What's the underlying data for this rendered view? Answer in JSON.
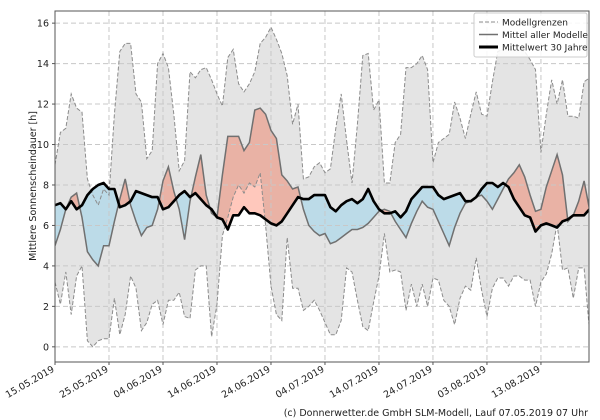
{
  "chart_data": {
    "type": "area",
    "title": "",
    "ylabel": "Mittlere Sonnenscheindauer [h]",
    "xlabel": "",
    "x_unit": "days since 15.05.2019",
    "xlim": [
      0,
      98.9
    ],
    "ylim": [
      -0.75,
      16.6
    ],
    "grid": true,
    "legend_position": "top-right",
    "x_ticks": [
      {
        "day": 0,
        "label": "15.05.2019"
      },
      {
        "day": 10,
        "label": "25.05.2019"
      },
      {
        "day": 20,
        "label": "04.06.2019"
      },
      {
        "day": 30,
        "label": "14.06.2019"
      },
      {
        "day": 40,
        "label": "24.06.2019"
      },
      {
        "day": 50,
        "label": "04.07.2019"
      },
      {
        "day": 60,
        "label": "14.07.2019"
      },
      {
        "day": 70,
        "label": "24.07.2019"
      },
      {
        "day": 80,
        "label": "03.08.2019"
      },
      {
        "day": 90,
        "label": "13.08.2019"
      }
    ],
    "y_ticks": [
      "0",
      "2",
      "4",
      "6",
      "8",
      "10",
      "12",
      "14",
      "16"
    ],
    "legend": [
      {
        "label": "Modellgrenzen",
        "style": "dashed"
      },
      {
        "label": "Mittel aller Modelle",
        "style": "solid-grey"
      },
      {
        "label": "Mittelwert 30 Jahre",
        "style": "solid-black"
      }
    ],
    "colors": {
      "band": "#e4e4e4",
      "above": "#e9b2a5",
      "below": "#bcdbe8",
      "lower_above": "#ffc8bc",
      "bound": "#8c8c8c",
      "model": "#707070",
      "clim": "#000000"
    },
    "series": {
      "upper": [
        9.0,
        10.6,
        10.8,
        12.5,
        11.8,
        11.6,
        8.3,
        7.5,
        7.0,
        7.8,
        7.5,
        11.5,
        14.6,
        15.0,
        15.0,
        12.5,
        12.1,
        9.3,
        9.7,
        14.0,
        14.5,
        13.8,
        11.5,
        8.7,
        9.2,
        13.6,
        13.3,
        13.7,
        13.8,
        13.2,
        12.5,
        11.9,
        14.3,
        14.7,
        13.0,
        12.6,
        13.0,
        13.6,
        15.0,
        15.3,
        15.8,
        15.2,
        14.5,
        13.4,
        11.0,
        12.0,
        8.3,
        8.4,
        8.9,
        9.1,
        8.6,
        8.8,
        10.8,
        12.5,
        10.2,
        8.1,
        11.0,
        14.4,
        14.5,
        11.7,
        12.2,
        8.1,
        8.1,
        10.1,
        10.5,
        13.8,
        13.8,
        14.0,
        14.4,
        13.7,
        9.1,
        10.1,
        10.3,
        10.5,
        12.1,
        11.3,
        10.3,
        11.5,
        12.6,
        11.5,
        11.4,
        13.1,
        14.6,
        14.7,
        14.7,
        14.7,
        14.7,
        14.6,
        14.2,
        13.7,
        9.6,
        11.5,
        13.2,
        12.0,
        13.2,
        11.4,
        11.4,
        11.3,
        13.1,
        13.3
      ],
      "lower": [
        3.2,
        2.1,
        3.7,
        1.6,
        3.5,
        4.0,
        0.3,
        0.0,
        0.3,
        0.4,
        0.4,
        2.4,
        0.6,
        1.6,
        3.5,
        2.9,
        0.8,
        1.2,
        2.1,
        2.3,
        1.1,
        2.3,
        2.3,
        2.7,
        1.5,
        1.4,
        3.8,
        4.0,
        4.0,
        0.5,
        2.1,
        5.5,
        6.4,
        7.4,
        8.0,
        7.6,
        8.1,
        7.9,
        8.6,
        6.0,
        3.0,
        1.6,
        1.3,
        5.4,
        2.9,
        2.9,
        1.8,
        2.0,
        2.3,
        1.8,
        1.2,
        0.6,
        0.6,
        1.3,
        3.9,
        3.7,
        2.3,
        1.0,
        0.8,
        2.2,
        3.5,
        5.6,
        3.7,
        3.8,
        3.7,
        1.8,
        3.1,
        2.0,
        3.1,
        2.0,
        3.4,
        3.3,
        2.3,
        2.0,
        1.1,
        2.4,
        3.0,
        2.8,
        4.4,
        2.8,
        1.5,
        2.9,
        3.4,
        3.4,
        3.0,
        3.5,
        3.5,
        3.3,
        3.3,
        2.0,
        3.2,
        3.6,
        4.6,
        6.1,
        3.8,
        3.9,
        2.4,
        3.9,
        3.9,
        0.8
      ],
      "model_mean": [
        5.0,
        5.8,
        6.8,
        7.4,
        7.6,
        6.4,
        4.7,
        4.3,
        4.0,
        5.0,
        5.0,
        6.2,
        7.3,
        8.3,
        7.0,
        6.2,
        5.5,
        5.9,
        6.0,
        6.8,
        8.2,
        8.9,
        7.7,
        6.8,
        5.3,
        7.2,
        8.4,
        9.5,
        7.5,
        6.6,
        6.4,
        8.5,
        10.4,
        10.4,
        10.4,
        9.7,
        10.1,
        11.7,
        11.8,
        11.5,
        10.7,
        10.3,
        8.5,
        8.2,
        7.8,
        7.9,
        6.8,
        6.0,
        5.7,
        5.5,
        5.6,
        5.1,
        5.2,
        5.4,
        5.6,
        5.8,
        5.8,
        5.9,
        6.1,
        6.4,
        6.7,
        6.8,
        6.7,
        6.2,
        5.8,
        5.4,
        6.1,
        6.7,
        7.2,
        6.9,
        6.8,
        6.2,
        5.6,
        5.0,
        5.9,
        6.6,
        7.1,
        7.2,
        7.4,
        7.5,
        7.2,
        6.8,
        7.3,
        7.8,
        8.3,
        8.6,
        9.0,
        8.4,
        7.5,
        6.7,
        6.8,
        7.9,
        8.7,
        9.5,
        8.5,
        6.2,
        6.5,
        7.2,
        8.2,
        6.8
      ],
      "climate_mean_30y": [
        7.0,
        7.1,
        6.8,
        7.2,
        6.8,
        7.0,
        7.5,
        7.8,
        8.0,
        8.1,
        7.8,
        7.8,
        6.9,
        7.0,
        7.2,
        7.7,
        7.6,
        7.5,
        7.4,
        7.4,
        6.8,
        6.9,
        7.2,
        7.5,
        7.7,
        7.4,
        7.6,
        7.3,
        7.0,
        6.8,
        6.4,
        6.3,
        5.8,
        6.5,
        6.5,
        6.9,
        6.6,
        6.6,
        6.5,
        6.3,
        6.1,
        6.0,
        6.2,
        6.6,
        7.0,
        7.4,
        7.3,
        7.3,
        7.5,
        7.5,
        7.5,
        6.9,
        6.7,
        7.0,
        7.2,
        7.3,
        7.1,
        7.3,
        7.8,
        7.2,
        6.8,
        6.6,
        6.6,
        6.7,
        6.4,
        6.7,
        7.3,
        7.6,
        7.9,
        7.9,
        7.9,
        7.5,
        7.3,
        7.4,
        7.5,
        7.6,
        7.2,
        7.2,
        7.4,
        7.8,
        8.1,
        8.1,
        7.9,
        8.1,
        7.9,
        7.3,
        6.9,
        6.5,
        6.4,
        5.7,
        6.0,
        6.1,
        6.0,
        5.9,
        6.2,
        6.3,
        6.5,
        6.5,
        6.5,
        6.8
      ]
    }
  },
  "footer": {
    "credit": "(c) Donnerwetter.de GmbH SLM-Modell, Lauf 07.05.2019 07 Uhr"
  }
}
